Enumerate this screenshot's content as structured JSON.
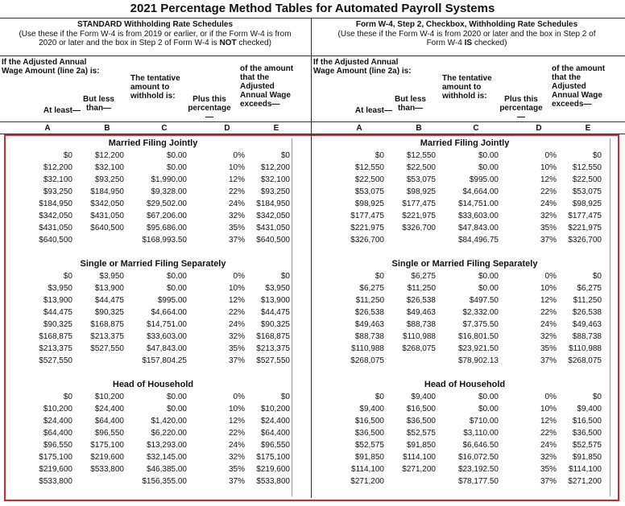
{
  "title": "2021 Percentage Method Tables for Automated Payroll Systems",
  "panels": [
    {
      "heading": "STANDARD Withholding Rate Schedules",
      "note": [
        "(Use these if the Form W-4 is from 2019 or earlier, or if the Form W-4 is from 2020 or later and the box in Step 2 of Form W-4 is ",
        "NOT",
        " checked)"
      ],
      "group_header": "If the Adjusted Annual Wage Amount (line 2a) is:",
      "columns": [
        "At least—",
        "But less than—",
        "The tentative amount to withhold is:",
        "Plus this percentage—",
        "of the amount that the Adjusted Annual Wage exceeds—"
      ],
      "letters": [
        "A",
        "B",
        "C",
        "D",
        "E"
      ],
      "sections": [
        {
          "title": "Married Filing Jointly",
          "rows": [
            [
              "$0",
              "$12,200",
              "$0.00",
              "0%",
              "$0"
            ],
            [
              "$12,200",
              "$32,100",
              "$0.00",
              "10%",
              "$12,200"
            ],
            [
              "$32,100",
              "$93,250",
              "$1,990.00",
              "12%",
              "$32,100"
            ],
            [
              "$93,250",
              "$184,950",
              "$9,328.00",
              "22%",
              "$93,250"
            ],
            [
              "$184,950",
              "$342,050",
              "$29,502.00",
              "24%",
              "$184,950"
            ],
            [
              "$342,050",
              "$431,050",
              "$67,206.00",
              "32%",
              "$342,050"
            ],
            [
              "$431,050",
              "$640,500",
              "$95,686.00",
              "35%",
              "$431,050"
            ],
            [
              "$640,500",
              null,
              "$168,993.50",
              "37%",
              "$640,500"
            ]
          ]
        },
        {
          "title": "Single or Married Filing Separately",
          "rows": [
            [
              "$0",
              "$3,950",
              "$0.00",
              "0%",
              "$0"
            ],
            [
              "$3,950",
              "$13,900",
              "$0.00",
              "10%",
              "$3,950"
            ],
            [
              "$13,900",
              "$44,475",
              "$995.00",
              "12%",
              "$13,900"
            ],
            [
              "$44,475",
              "$90,325",
              "$4,664.00",
              "22%",
              "$44,475"
            ],
            [
              "$90,325",
              "$168,875",
              "$14,751.00",
              "24%",
              "$90,325"
            ],
            [
              "$168,875",
              "$213,375",
              "$33,603.00",
              "32%",
              "$168,875"
            ],
            [
              "$213,375",
              "$527,550",
              "$47,843.00",
              "35%",
              "$213,375"
            ],
            [
              "$527,550",
              null,
              "$157,804.25",
              "37%",
              "$527,550"
            ]
          ]
        },
        {
          "title": "Head of Household",
          "rows": [
            [
              "$0",
              "$10,200",
              "$0.00",
              "0%",
              "$0"
            ],
            [
              "$10,200",
              "$24,400",
              "$0.00",
              "10%",
              "$10,200"
            ],
            [
              "$24,400",
              "$64,400",
              "$1,420.00",
              "12%",
              "$24,400"
            ],
            [
              "$64,400",
              "$96,550",
              "$6,220.00",
              "22%",
              "$64,400"
            ],
            [
              "$96,550",
              "$175,100",
              "$13,293.00",
              "24%",
              "$96,550"
            ],
            [
              "$175,100",
              "$219,600",
              "$32,145.00",
              "32%",
              "$175,100"
            ],
            [
              "$219,600",
              "$533,800",
              "$46,385.00",
              "35%",
              "$219,600"
            ],
            [
              "$533,800",
              null,
              "$156,355.00",
              "37%",
              "$533,800"
            ]
          ]
        }
      ]
    },
    {
      "heading": "Form W-4, Step 2, Checkbox, Withholding Rate Schedules",
      "note": [
        "(Use these if the Form W-4 is from 2020 or later and the box in Step 2 of Form W-4 ",
        "IS",
        " checked)"
      ],
      "group_header": "If the Adjusted Annual Wage Amount (line 2a) is:",
      "columns": [
        "At least—",
        "But less than—",
        "The tentative amount to withhold is:",
        "Plus this percentage—",
        "of the amount that the Adjusted Annual Wage exceeds—"
      ],
      "letters": [
        "A",
        "B",
        "C",
        "D",
        "E"
      ],
      "sections": [
        {
          "title": "Married Filing Jointly",
          "rows": [
            [
              "$0",
              "$12,550",
              "$0.00",
              "0%",
              "$0"
            ],
            [
              "$12,550",
              "$22,500",
              "$0.00",
              "10%",
              "$12,550"
            ],
            [
              "$22,500",
              "$53,075",
              "$995.00",
              "12%",
              "$22,500"
            ],
            [
              "$53,075",
              "$98,925",
              "$4,664.00",
              "22%",
              "$53,075"
            ],
            [
              "$98,925",
              "$177,475",
              "$14,751.00",
              "24%",
              "$98,925"
            ],
            [
              "$177,475",
              "$221,975",
              "$33,603.00",
              "32%",
              "$177,475"
            ],
            [
              "$221,975",
              "$326,700",
              "$47,843.00",
              "35%",
              "$221,975"
            ],
            [
              "$326,700",
              null,
              "$84,496.75",
              "37%",
              "$326,700"
            ]
          ]
        },
        {
          "title": "Single or Married Filing Separately",
          "rows": [
            [
              "$0",
              "$6,275",
              "$0.00",
              "0%",
              "$0"
            ],
            [
              "$6,275",
              "$11,250",
              "$0.00",
              "10%",
              "$6,275"
            ],
            [
              "$11,250",
              "$26,538",
              "$497.50",
              "12%",
              "$11,250"
            ],
            [
              "$26,538",
              "$49,463",
              "$2,332.00",
              "22%",
              "$26,538"
            ],
            [
              "$49,463",
              "$88,738",
              "$7,375.50",
              "24%",
              "$49,463"
            ],
            [
              "$88,738",
              "$110,988",
              "$16,801.50",
              "32%",
              "$88,738"
            ],
            [
              "$110,988",
              "$268,075",
              "$23,921.50",
              "35%",
              "$110,988"
            ],
            [
              "$268,075",
              null,
              "$78,902.13",
              "37%",
              "$268,075"
            ]
          ]
        },
        {
          "title": "Head of Household",
          "rows": [
            [
              "$0",
              "$9,400",
              "$0.00",
              "0%",
              "$0"
            ],
            [
              "$9,400",
              "$16,500",
              "$0.00",
              "10%",
              "$9,400"
            ],
            [
              "$16,500",
              "$36,500",
              "$710.00",
              "12%",
              "$16,500"
            ],
            [
              "$36,500",
              "$52,575",
              "$3,110.00",
              "22%",
              "$36,500"
            ],
            [
              "$52,575",
              "$91,850",
              "$6,646.50",
              "24%",
              "$52,575"
            ],
            [
              "$91,850",
              "$114,100",
              "$16,072.50",
              "32%",
              "$91,850"
            ],
            [
              "$114,100",
              "$271,200",
              "$23,192.50",
              "35%",
              "$114,100"
            ],
            [
              "$271,200",
              null,
              "$78,177.50",
              "37%",
              "$271,200"
            ]
          ]
        }
      ]
    }
  ]
}
